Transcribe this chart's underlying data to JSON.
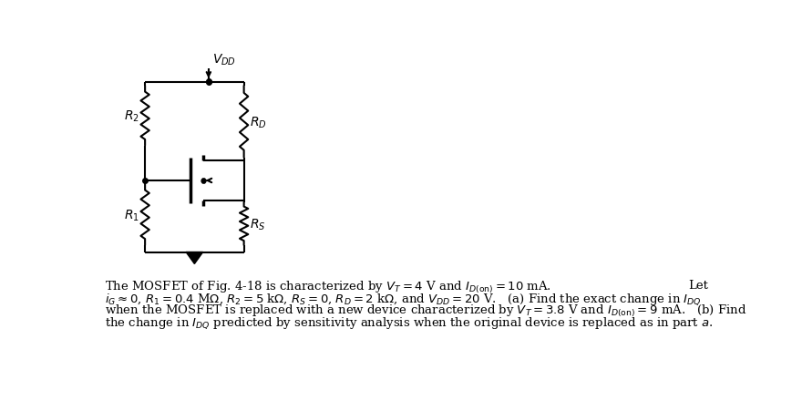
{
  "background_color": "#ffffff",
  "circuit": {
    "vdd_label": "$V_{DD}$",
    "r2_label": "$R_2$",
    "rd_label": "$R_D$",
    "r1_label": "$R_1$",
    "rs_label": "$R_S$"
  },
  "text_lines": [
    [
      "The MOSFET of Fig. 4-18 is characterized by $V_T = 4$ V and $I_{D({\\rm on})} = 10$ mA.",
      "Let"
    ],
    [
      "$i_G \\approx 0$, $R_1 = 0.4$ M$\\Omega$, $R_2 = 5$ k$\\Omega$, $R_S = 0$, $R_D = 2$ k$\\Omega$, and $V_{DD} = 20$ V.   (a) Find the exact change in $I_{DQ}$",
      ""
    ],
    [
      "when the MOSFET is replaced with a new device characterized by $V_T = 3.8$ V and $I_{D({\\rm on})} = 9$ mA.   (b) Find",
      ""
    ],
    [
      "the change in $I_{DQ}$ predicted by sensitivity analysis when the original device is replaced as in part $a$.",
      ""
    ]
  ],
  "line_color": "#000000",
  "text_color": "#000000",
  "font_size": 9.5
}
